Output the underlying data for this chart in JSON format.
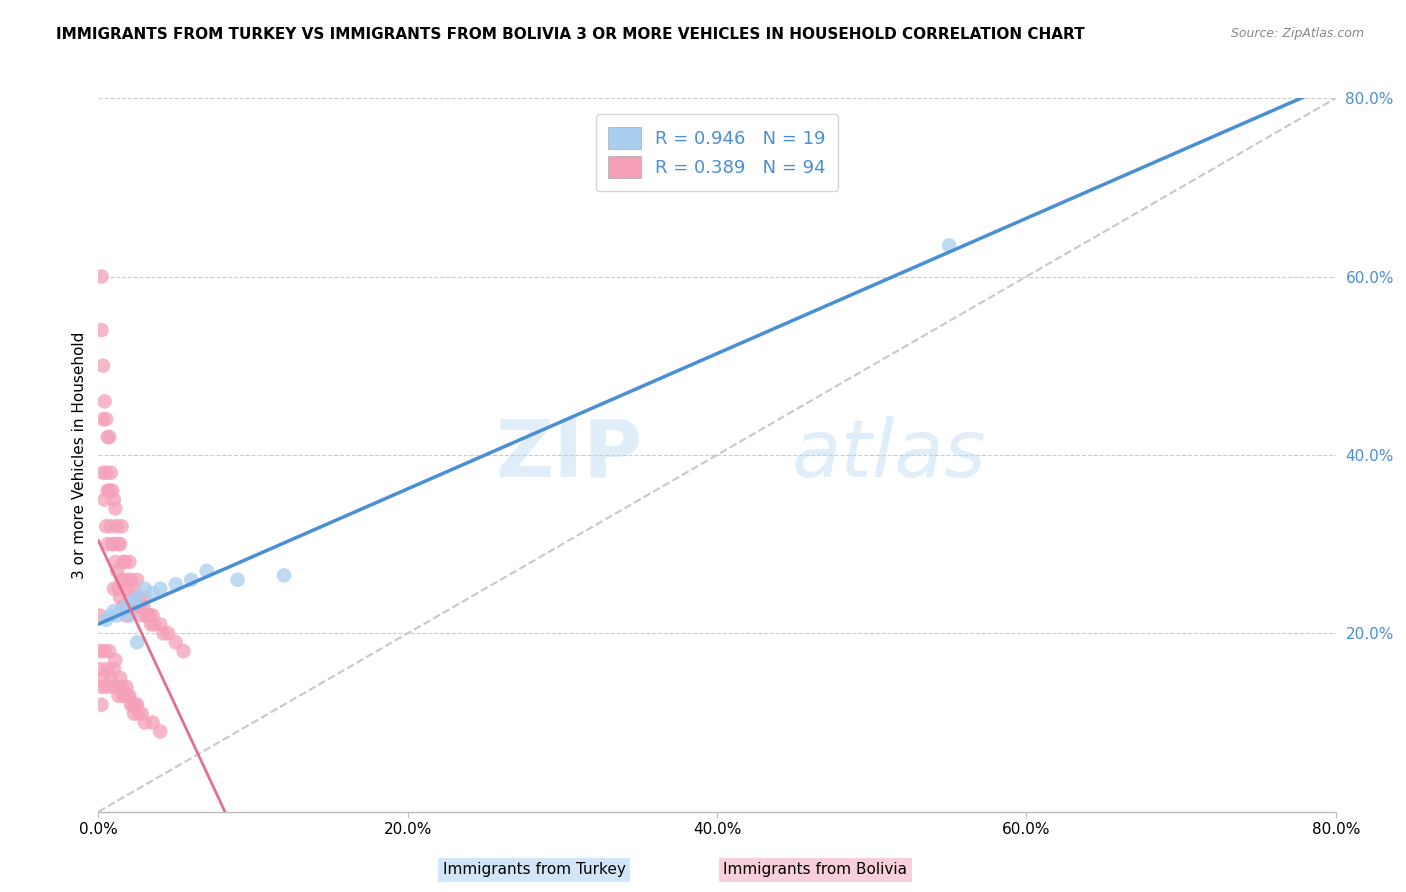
{
  "title": "IMMIGRANTS FROM TURKEY VS IMMIGRANTS FROM BOLIVIA 3 OR MORE VEHICLES IN HOUSEHOLD CORRELATION CHART",
  "source": "Source: ZipAtlas.com",
  "ylabel": "3 or more Vehicles in Household",
  "x_tick_labels": [
    "0.0%",
    "20.0%",
    "40.0%",
    "60.0%",
    "80.0%"
  ],
  "y_tick_labels": [
    "20.0%",
    "40.0%",
    "60.0%",
    "80.0%"
  ],
  "xlim": [
    0,
    0.8
  ],
  "ylim": [
    0,
    0.8
  ],
  "legend_label1": "Immigrants from Turkey",
  "legend_label2": "Immigrants from Bolivia",
  "R1": 0.946,
  "N1": 19,
  "R2": 0.389,
  "N2": 94,
  "color_turkey": "#a8cef0",
  "color_bolivia": "#f4a0b8",
  "line_color_turkey": "#4a8fd4",
  "line_color_bolivia": "#e07090",
  "watermark_zip": "ZIP",
  "watermark_atlas": "atlas",
  "title_fontsize": 11,
  "turkey_x": [
    0.005,
    0.008,
    0.01,
    0.012,
    0.015,
    0.018,
    0.02,
    0.022,
    0.025,
    0.03,
    0.035,
    0.04,
    0.05,
    0.06,
    0.07,
    0.09,
    0.12,
    0.55,
    0.025
  ],
  "turkey_y": [
    0.215,
    0.22,
    0.225,
    0.22,
    0.225,
    0.23,
    0.22,
    0.235,
    0.24,
    0.25,
    0.245,
    0.25,
    0.255,
    0.26,
    0.27,
    0.26,
    0.265,
    0.635,
    0.19
  ],
  "bolivia_x": [
    0.001,
    0.001,
    0.002,
    0.002,
    0.003,
    0.003,
    0.003,
    0.004,
    0.004,
    0.005,
    0.005,
    0.005,
    0.006,
    0.006,
    0.006,
    0.007,
    0.007,
    0.008,
    0.008,
    0.009,
    0.009,
    0.01,
    0.01,
    0.01,
    0.011,
    0.011,
    0.012,
    0.012,
    0.013,
    0.013,
    0.014,
    0.014,
    0.015,
    0.015,
    0.016,
    0.016,
    0.017,
    0.018,
    0.018,
    0.019,
    0.02,
    0.02,
    0.021,
    0.022,
    0.023,
    0.024,
    0.025,
    0.026,
    0.027,
    0.028,
    0.029,
    0.03,
    0.031,
    0.032,
    0.033,
    0.034,
    0.035,
    0.036,
    0.04,
    0.042,
    0.045,
    0.05,
    0.055,
    0.001,
    0.002,
    0.002,
    0.003,
    0.004,
    0.005,
    0.006,
    0.007,
    0.008,
    0.009,
    0.01,
    0.011,
    0.012,
    0.013,
    0.014,
    0.015,
    0.016,
    0.017,
    0.018,
    0.019,
    0.02,
    0.021,
    0.022,
    0.023,
    0.024,
    0.025,
    0.026,
    0.028,
    0.03,
    0.035,
    0.04
  ],
  "bolivia_y": [
    0.22,
    0.18,
    0.6,
    0.54,
    0.5,
    0.44,
    0.38,
    0.46,
    0.35,
    0.44,
    0.38,
    0.32,
    0.42,
    0.36,
    0.3,
    0.42,
    0.36,
    0.38,
    0.32,
    0.36,
    0.3,
    0.35,
    0.3,
    0.25,
    0.34,
    0.28,
    0.32,
    0.27,
    0.3,
    0.25,
    0.3,
    0.24,
    0.32,
    0.26,
    0.28,
    0.23,
    0.28,
    0.26,
    0.22,
    0.25,
    0.28,
    0.23,
    0.26,
    0.24,
    0.25,
    0.23,
    0.26,
    0.24,
    0.23,
    0.22,
    0.23,
    0.24,
    0.22,
    0.22,
    0.22,
    0.21,
    0.22,
    0.21,
    0.21,
    0.2,
    0.2,
    0.19,
    0.18,
    0.16,
    0.14,
    0.12,
    0.15,
    0.18,
    0.14,
    0.16,
    0.18,
    0.15,
    0.14,
    0.16,
    0.17,
    0.14,
    0.13,
    0.15,
    0.14,
    0.13,
    0.13,
    0.14,
    0.13,
    0.13,
    0.12,
    0.12,
    0.11,
    0.12,
    0.12,
    0.11,
    0.11,
    0.1,
    0.1,
    0.09
  ]
}
